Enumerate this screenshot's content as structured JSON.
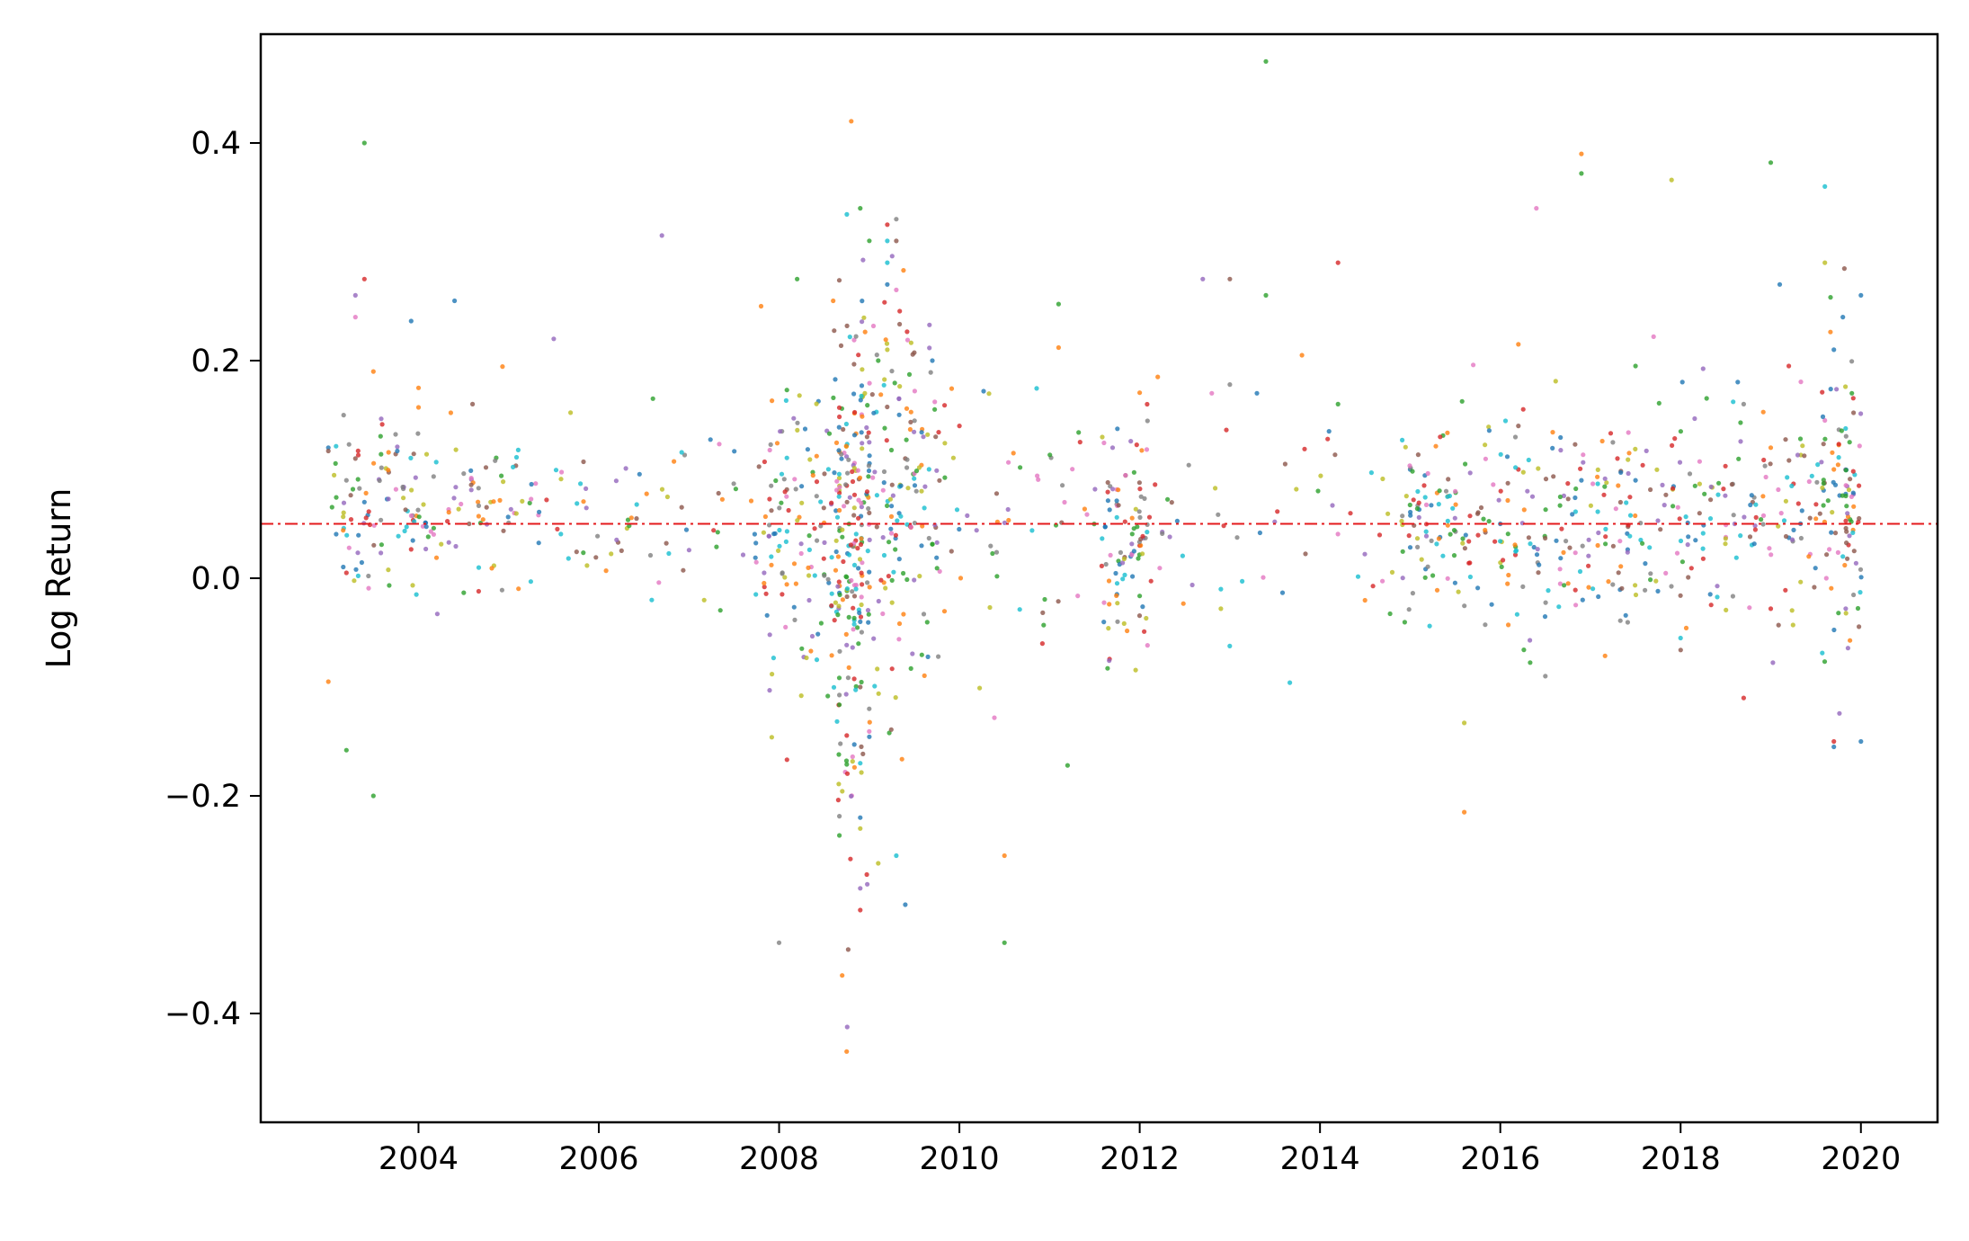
{
  "chart_data": {
    "type": "scatter",
    "title": "",
    "xlabel": "",
    "ylabel": "Log Return",
    "xlim": [
      2002.25,
      2020.85
    ],
    "ylim": [
      -0.5,
      0.5
    ],
    "x_ticks": [
      2004,
      2006,
      2008,
      2010,
      2012,
      2014,
      2016,
      2018,
      2020
    ],
    "x_tick_labels": [
      "2004",
      "2006",
      "2008",
      "2010",
      "2012",
      "2014",
      "2016",
      "2018",
      "2020"
    ],
    "y_ticks": [
      -0.4,
      -0.2,
      0.0,
      0.2,
      0.4
    ],
    "y_tick_labels": [
      "−0.4",
      "−0.2",
      "0.0",
      "0.2",
      "0.4"
    ],
    "grid": false,
    "legend": "none",
    "reference_line": {
      "y": 0.05,
      "color": "#e41a1c",
      "style": "dash-dot"
    },
    "series_colors": [
      "#1f77b4",
      "#ff7f0e",
      "#2ca02c",
      "#d62728",
      "#9467bd",
      "#8c564b",
      "#e377c2",
      "#7f7f7f",
      "#bcbd22",
      "#17becf"
    ],
    "series": [
      {
        "values": [
          [
            2003.0,
            0.12
          ],
          [
            2003.4,
            0.07
          ],
          [
            2004.4,
            0.255
          ],
          [
            2008.9,
            -0.22
          ],
          [
            2008.9,
            -0.04
          ],
          [
            2009.2,
            0.27
          ],
          [
            2009.4,
            -0.3
          ],
          [
            2009.7,
            0.2
          ],
          [
            2011.9,
            0.02
          ],
          [
            2013.3,
            0.17
          ],
          [
            2014.1,
            0.135
          ],
          [
            2015.0,
            0.1
          ],
          [
            2016.0,
            0.05
          ],
          [
            2016.9,
            0.09
          ],
          [
            2017.5,
            0.09
          ],
          [
            2019.1,
            0.27
          ],
          [
            2019.7,
            0.21
          ],
          [
            2019.8,
            0.24
          ],
          [
            2020.0,
            0.26
          ],
          [
            2020.0,
            -0.15
          ],
          [
            2019.7,
            -0.155
          ]
        ]
      },
      {
        "values": [
          [
            2003.0,
            -0.095
          ],
          [
            2003.5,
            0.19
          ],
          [
            2004.0,
            0.175
          ],
          [
            2007.8,
            0.25
          ],
          [
            2008.6,
            0.255
          ],
          [
            2008.7,
            -0.365
          ],
          [
            2008.8,
            0.42
          ],
          [
            2008.75,
            -0.435
          ],
          [
            2010.5,
            -0.255
          ],
          [
            2010.6,
            0.115
          ],
          [
            2011.1,
            0.212
          ],
          [
            2012.2,
            0.185
          ],
          [
            2013.8,
            0.205
          ],
          [
            2015.6,
            -0.215
          ],
          [
            2016.2,
            0.215
          ],
          [
            2016.9,
            0.39
          ],
          [
            2019.0,
            0.12
          ],
          [
            2019.7,
            0.1
          ]
        ]
      },
      {
        "values": [
          [
            2003.4,
            0.4
          ],
          [
            2003.2,
            -0.158
          ],
          [
            2003.5,
            -0.2
          ],
          [
            2006.6,
            0.165
          ],
          [
            2008.2,
            0.275
          ],
          [
            2008.9,
            0.34
          ],
          [
            2009.1,
            0.2
          ],
          [
            2010.5,
            -0.335
          ],
          [
            2011.1,
            0.252
          ],
          [
            2011.2,
            -0.172
          ],
          [
            2013.4,
            0.475
          ],
          [
            2013.4,
            0.26
          ],
          [
            2016.9,
            0.372
          ],
          [
            2017.5,
            0.195
          ],
          [
            2019.0,
            0.382
          ],
          [
            2019.9,
            0.17
          ],
          [
            2014.2,
            0.16
          ]
        ]
      },
      {
        "values": [
          [
            2003.4,
            0.275
          ],
          [
            2003.2,
            0.005
          ],
          [
            2008.9,
            -0.305
          ],
          [
            2009.2,
            0.325
          ],
          [
            2012.0,
            0.03
          ],
          [
            2014.2,
            0.29
          ],
          [
            2016.2,
            0.1
          ],
          [
            2017.3,
            0.11
          ],
          [
            2018.7,
            -0.11
          ],
          [
            2019.2,
            0.195
          ],
          [
            2019.7,
            -0.15
          ],
          [
            2019.0,
            -0.028
          ],
          [
            2010.0,
            0.14
          ]
        ]
      },
      {
        "values": [
          [
            2003.3,
            0.26
          ],
          [
            2005.5,
            0.22
          ],
          [
            2006.7,
            0.315
          ],
          [
            2008.9,
            -0.285
          ],
          [
            2009.0,
            0.125
          ],
          [
            2009.6,
            0.13
          ],
          [
            2012.7,
            0.275
          ],
          [
            2016.3,
            0.08
          ],
          [
            2018.6,
            0.05
          ],
          [
            2011.7,
            0.12
          ]
        ]
      },
      {
        "values": [
          [
            2003.3,
            0.11
          ],
          [
            2004.6,
            0.16
          ],
          [
            2008.9,
            -0.1
          ],
          [
            2009.3,
            0.31
          ],
          [
            2009.4,
            0.11
          ],
          [
            2013.0,
            0.275
          ],
          [
            2016.2,
            0.14
          ],
          [
            2018.8,
            0.07
          ],
          [
            2009.0,
            0.06
          ]
        ]
      },
      {
        "values": [
          [
            2003.3,
            0.24
          ],
          [
            2009.3,
            0.265
          ],
          [
            2012.8,
            0.17
          ],
          [
            2016.4,
            0.34
          ],
          [
            2017.7,
            0.222
          ],
          [
            2019.6,
            0.145
          ],
          [
            2015.7,
            0.196
          ],
          [
            2005.3,
            0.087
          ]
        ]
      },
      {
        "values": [
          [
            2003.2,
            0.09
          ],
          [
            2008.0,
            -0.335
          ],
          [
            2009.3,
            0.33
          ],
          [
            2013.0,
            0.178
          ],
          [
            2015.4,
            0.08
          ],
          [
            2016.5,
            -0.09
          ],
          [
            2018.7,
            0.16
          ],
          [
            2009.0,
            -0.12
          ]
        ]
      },
      {
        "values": [
          [
            2008.9,
            -0.23
          ],
          [
            2009.1,
            -0.262
          ],
          [
            2009.2,
            0.21
          ],
          [
            2012.9,
            -0.028
          ],
          [
            2017.9,
            0.366
          ],
          [
            2019.6,
            0.29
          ],
          [
            2015.6,
            -0.133
          ],
          [
            2004.8,
            0.07
          ]
        ]
      },
      {
        "values": [
          [
            2008.9,
            -0.17
          ],
          [
            2009.2,
            0.29
          ],
          [
            2009.2,
            0.31
          ],
          [
            2009.3,
            -0.255
          ],
          [
            2012.9,
            -0.01
          ],
          [
            2019.6,
            0.36
          ],
          [
            2018.0,
            -0.055
          ],
          [
            2019.8,
            0.02
          ]
        ]
      }
    ]
  }
}
